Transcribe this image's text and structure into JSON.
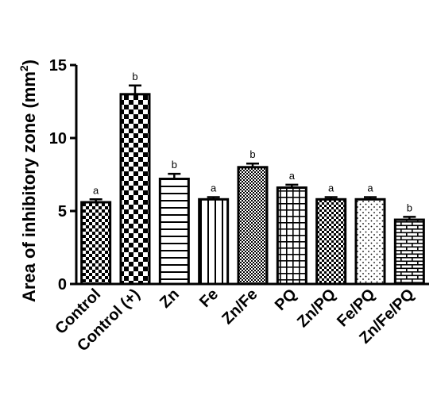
{
  "chart_data": {
    "type": "bar",
    "categories": [
      "Control",
      "Control (+)",
      "Zn",
      "Fe",
      "Zn/Fe",
      "PQ",
      "Zn/PQ",
      "Fe/PQ",
      "Zn/Fe/PQ"
    ],
    "values": [
      5.6,
      13.0,
      7.2,
      5.8,
      8.0,
      6.6,
      5.8,
      5.8,
      4.4
    ],
    "errors": [
      0.2,
      0.6,
      0.35,
      0.15,
      0.25,
      0.2,
      0.15,
      0.15,
      0.2
    ],
    "significance": [
      "a",
      "b",
      "b",
      "a",
      "b",
      "a",
      "a",
      "a",
      "b"
    ],
    "patterns": [
      "small-checker",
      "large-checker",
      "horizontal-lines",
      "vertical-lines",
      "dense-dots",
      "grid",
      "fine-checker",
      "sparse-dots",
      "bricks"
    ],
    "ylabel_main": "Area of inhibitory zone (mm",
    "ylabel_sup": "2",
    "ylabel_close": ")",
    "ylim": [
      0,
      15
    ],
    "yticks": [
      "0",
      "5",
      "10",
      "15"
    ],
    "ytick_values": [
      0,
      5,
      10,
      15
    ],
    "grid": false
  }
}
